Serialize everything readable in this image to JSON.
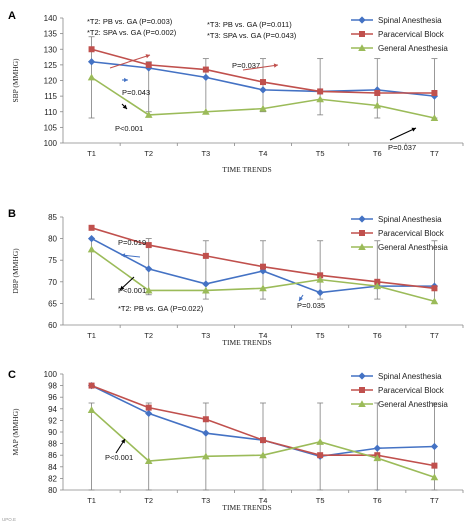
{
  "chart_data": [
    {
      "panel_label": "A",
      "type": "line",
      "title": "",
      "xlabel": "TIME TRENDS",
      "ylabel": "SBP (MMHG)",
      "categories": [
        "T1",
        "T2",
        "T3",
        "T4",
        "T5",
        "T6",
        "T7"
      ],
      "ylim": [
        100,
        140
      ],
      "yticks": [
        100,
        105,
        110,
        115,
        120,
        125,
        130,
        135,
        140
      ],
      "series": [
        {
          "name": "Spinal Anesthesia",
          "color": "#4472c4",
          "marker": "diamond",
          "values": [
            126,
            124,
            121,
            117,
            116.5,
            117,
            115
          ]
        },
        {
          "name": "Paracervical Block",
          "color": "#c0504d",
          "marker": "square",
          "values": [
            130,
            125,
            123.5,
            119.5,
            116.5,
            116,
            116
          ]
        },
        {
          "name": "General Anesthesia",
          "color": "#9bbb59",
          "marker": "triangle",
          "values": [
            121,
            109,
            110,
            111,
            114,
            112,
            108
          ]
        }
      ],
      "error_bars": {
        "low": [
          108,
          110,
          110,
          110,
          109,
          108,
          108
        ],
        "high": [
          134,
          126,
          127,
          127,
          127,
          127,
          127
        ]
      },
      "annotations": [
        {
          "text": "*T2: PB vs. GA (P=0.003)"
        },
        {
          "text": "*T2: SPA vs. GA (P=0.002)"
        },
        {
          "text": "*T3: PB vs. GA (P=0.011)"
        },
        {
          "text": "*T3: SPA vs. GA (P=0.043)"
        },
        {
          "text": "P=0.037"
        },
        {
          "text": "P=0.043"
        },
        {
          "text": "P<0.001"
        },
        {
          "text": "P=0.037"
        }
      ],
      "legend": "top-right",
      "grid": false
    },
    {
      "panel_label": "B",
      "type": "line",
      "title": "",
      "xlabel": "TIME TRENDS",
      "ylabel": "DBP (MMHG)",
      "categories": [
        "T1",
        "T2",
        "T3",
        "T4",
        "T5",
        "T6",
        "T7"
      ],
      "ylim": [
        60,
        85
      ],
      "yticks": [
        60,
        65,
        70,
        75,
        80,
        85
      ],
      "series": [
        {
          "name": "Spinal Anesthesia",
          "color": "#4472c4",
          "marker": "diamond",
          "values": [
            80,
            73,
            69.5,
            72.5,
            67.5,
            69,
            69
          ]
        },
        {
          "name": "Paracervical Block",
          "color": "#c0504d",
          "marker": "square",
          "values": [
            82.5,
            78.5,
            76,
            73.5,
            71.5,
            70,
            68.5
          ]
        },
        {
          "name": "General Anesthesia",
          "color": "#9bbb59",
          "marker": "triangle",
          "values": [
            77.5,
            68,
            68,
            68.5,
            70.5,
            69,
            65.5
          ]
        }
      ],
      "error_bars": {
        "low": [
          66,
          67,
          66,
          66,
          66,
          66,
          65
        ],
        "high": [
          80,
          80,
          79.5,
          79.5,
          79.5,
          79.5,
          79.5
        ]
      },
      "annotations": [
        {
          "text": "P=0.019"
        },
        {
          "text": "P<0.001"
        },
        {
          "text": "*T2: PB vs. GA (P=0.022)"
        },
        {
          "text": "P=0.035"
        }
      ],
      "legend": "top-right",
      "grid": false
    },
    {
      "panel_label": "C",
      "type": "line",
      "title": "",
      "xlabel": "TIME TRENDS",
      "ylabel": "MAP (MMHG)",
      "categories": [
        "T1",
        "T2",
        "T3",
        "T4",
        "T5",
        "T6",
        "T7"
      ],
      "ylim": [
        80,
        100
      ],
      "yticks": [
        80,
        82,
        84,
        86,
        88,
        90,
        92,
        94,
        96,
        98,
        100
      ],
      "series": [
        {
          "name": "Spinal Anesthesia",
          "color": "#4472c4",
          "marker": "diamond",
          "values": [
            98,
            93.2,
            89.8,
            88.6,
            85.8,
            87.2,
            87.5
          ]
        },
        {
          "name": "Paracervical Block",
          "color": "#c0504d",
          "marker": "square",
          "values": [
            98,
            94.2,
            92.2,
            88.6,
            86,
            86,
            84.2
          ]
        },
        {
          "name": "General Anesthesia",
          "color": "#9bbb59",
          "marker": "triangle",
          "values": [
            93.8,
            85,
            85.8,
            86,
            88.3,
            85.5,
            82.2
          ]
        }
      ],
      "error_bars": {
        "low": [
          80,
          80,
          80,
          80,
          80,
          80,
          80
        ],
        "high": [
          95,
          95,
          95,
          95,
          95,
          95,
          95
        ]
      },
      "annotations": [
        {
          "text": "P<0.001"
        }
      ],
      "legend": "top-right",
      "grid": false
    }
  ],
  "corner_text": "UPO.E"
}
